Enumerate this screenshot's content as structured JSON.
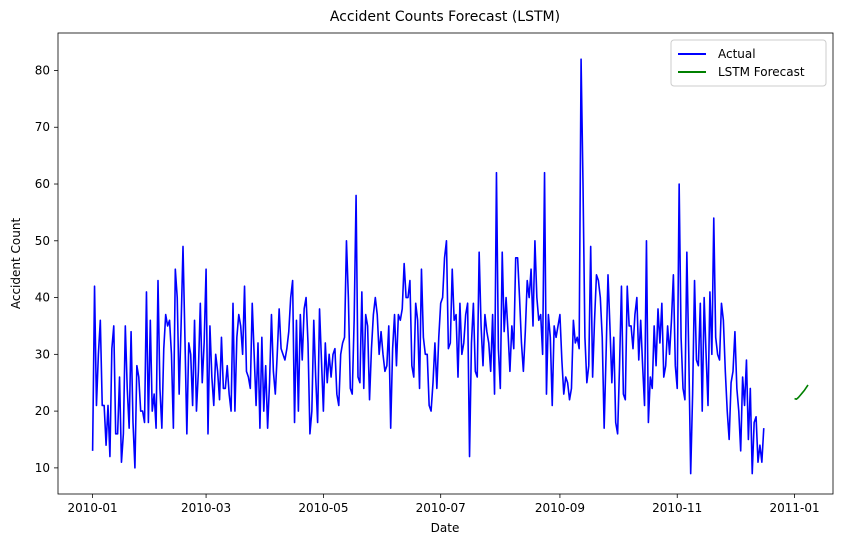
{
  "chart_data": {
    "type": "line",
    "title": "Accident Counts Forecast (LSTM)",
    "xlabel": "Date",
    "ylabel": "Accident Count",
    "x_type": "date",
    "xlim": [
      "2009-12-14",
      "2011-01-21"
    ],
    "ylim": [
      5.4,
      86.6
    ],
    "x_ticks": [
      {
        "date": "2010-01-01",
        "label": "2010-01"
      },
      {
        "date": "2010-03-01",
        "label": "2010-03"
      },
      {
        "date": "2010-05-01",
        "label": "2010-05"
      },
      {
        "date": "2010-07-01",
        "label": "2010-07"
      },
      {
        "date": "2010-09-01",
        "label": "2010-09"
      },
      {
        "date": "2010-11-01",
        "label": "2010-11"
      },
      {
        "date": "2011-01-01",
        "label": "2011-01"
      }
    ],
    "y_ticks": [
      10,
      20,
      30,
      40,
      50,
      60,
      70,
      80
    ],
    "grid": false,
    "legend_position": "top-right",
    "series": [
      {
        "name": "Actual",
        "color": "#0000ff",
        "start_date": "2010-01-01",
        "values": [
          13,
          42,
          21,
          30,
          36,
          21,
          21,
          14,
          21,
          12,
          31,
          35,
          16,
          16,
          26,
          11,
          16,
          35,
          24,
          17,
          34,
          18,
          10,
          28,
          26,
          20,
          20,
          18,
          41,
          18,
          36,
          20,
          23,
          17,
          43,
          24,
          17,
          31,
          37,
          35,
          36,
          30,
          17,
          45,
          40,
          23,
          35,
          49,
          33,
          16,
          32,
          30,
          21,
          36,
          20,
          27,
          39,
          25,
          32,
          45,
          16,
          35,
          26,
          21,
          30,
          27,
          22,
          33,
          24,
          24,
          28,
          23,
          20,
          39,
          20,
          33,
          37,
          35,
          30,
          42,
          27,
          26,
          24,
          39,
          30,
          21,
          32,
          17,
          33,
          20,
          28,
          17,
          25,
          37,
          27,
          23,
          30,
          38,
          31,
          30,
          29,
          31,
          34,
          40,
          43,
          18,
          36,
          20,
          37,
          29,
          38,
          40,
          32,
          16,
          20,
          36,
          26,
          18,
          38,
          29,
          20,
          32,
          25,
          30,
          26,
          30,
          31,
          23,
          21,
          30,
          32,
          33,
          50,
          40,
          24,
          23,
          36,
          58,
          26,
          25,
          41,
          24,
          37,
          35,
          22,
          31,
          37,
          40,
          37,
          30,
          34,
          30,
          27,
          28,
          35,
          17,
          31,
          37,
          28,
          37,
          36,
          38,
          46,
          40,
          40,
          43,
          28,
          26,
          39,
          36,
          24,
          45,
          33,
          30,
          30,
          21,
          20,
          25,
          32,
          24,
          33,
          39,
          40,
          47,
          50,
          31,
          32,
          45,
          36,
          37,
          26,
          39,
          30,
          32,
          37,
          39,
          12,
          32,
          39,
          27,
          26,
          48,
          35,
          28,
          37,
          34,
          32,
          27,
          37,
          23,
          62,
          31,
          24,
          48,
          34,
          40,
          34,
          27,
          35,
          31,
          47,
          47,
          40,
          32,
          27,
          34,
          43,
          40,
          45,
          35,
          50,
          40,
          36,
          37,
          30,
          62,
          23,
          37,
          33,
          21,
          35,
          33,
          35,
          37,
          29,
          23,
          26,
          25,
          22,
          24,
          36,
          32,
          33,
          31,
          82,
          60,
          33,
          25,
          28,
          49,
          26,
          36,
          44,
          43,
          40,
          33,
          17,
          30,
          44,
          35,
          25,
          33,
          18,
          16,
          28,
          42,
          23,
          22,
          42,
          35,
          35,
          31,
          37,
          40,
          29,
          36,
          28,
          21,
          50,
          18,
          26,
          24,
          35,
          28,
          38,
          32,
          39,
          26,
          28,
          35,
          30,
          36,
          44,
          28,
          24,
          60,
          33,
          24,
          22,
          48,
          30,
          9,
          23,
          43,
          29,
          28,
          39,
          20,
          40,
          30,
          21,
          41,
          30,
          54,
          33,
          30,
          29,
          39,
          36,
          27,
          20,
          15,
          25,
          27,
          34,
          24,
          20,
          13,
          26,
          21,
          29,
          15,
          24,
          9,
          18,
          19,
          11,
          14,
          11,
          17
        ]
      },
      {
        "name": "LSTM Forecast",
        "color": "#008000",
        "start_date": "2011-01-01",
        "values": [
          22.2,
          22.1,
          22.4,
          22.8,
          23.2,
          23.6,
          24.1,
          24.6
        ]
      }
    ]
  }
}
